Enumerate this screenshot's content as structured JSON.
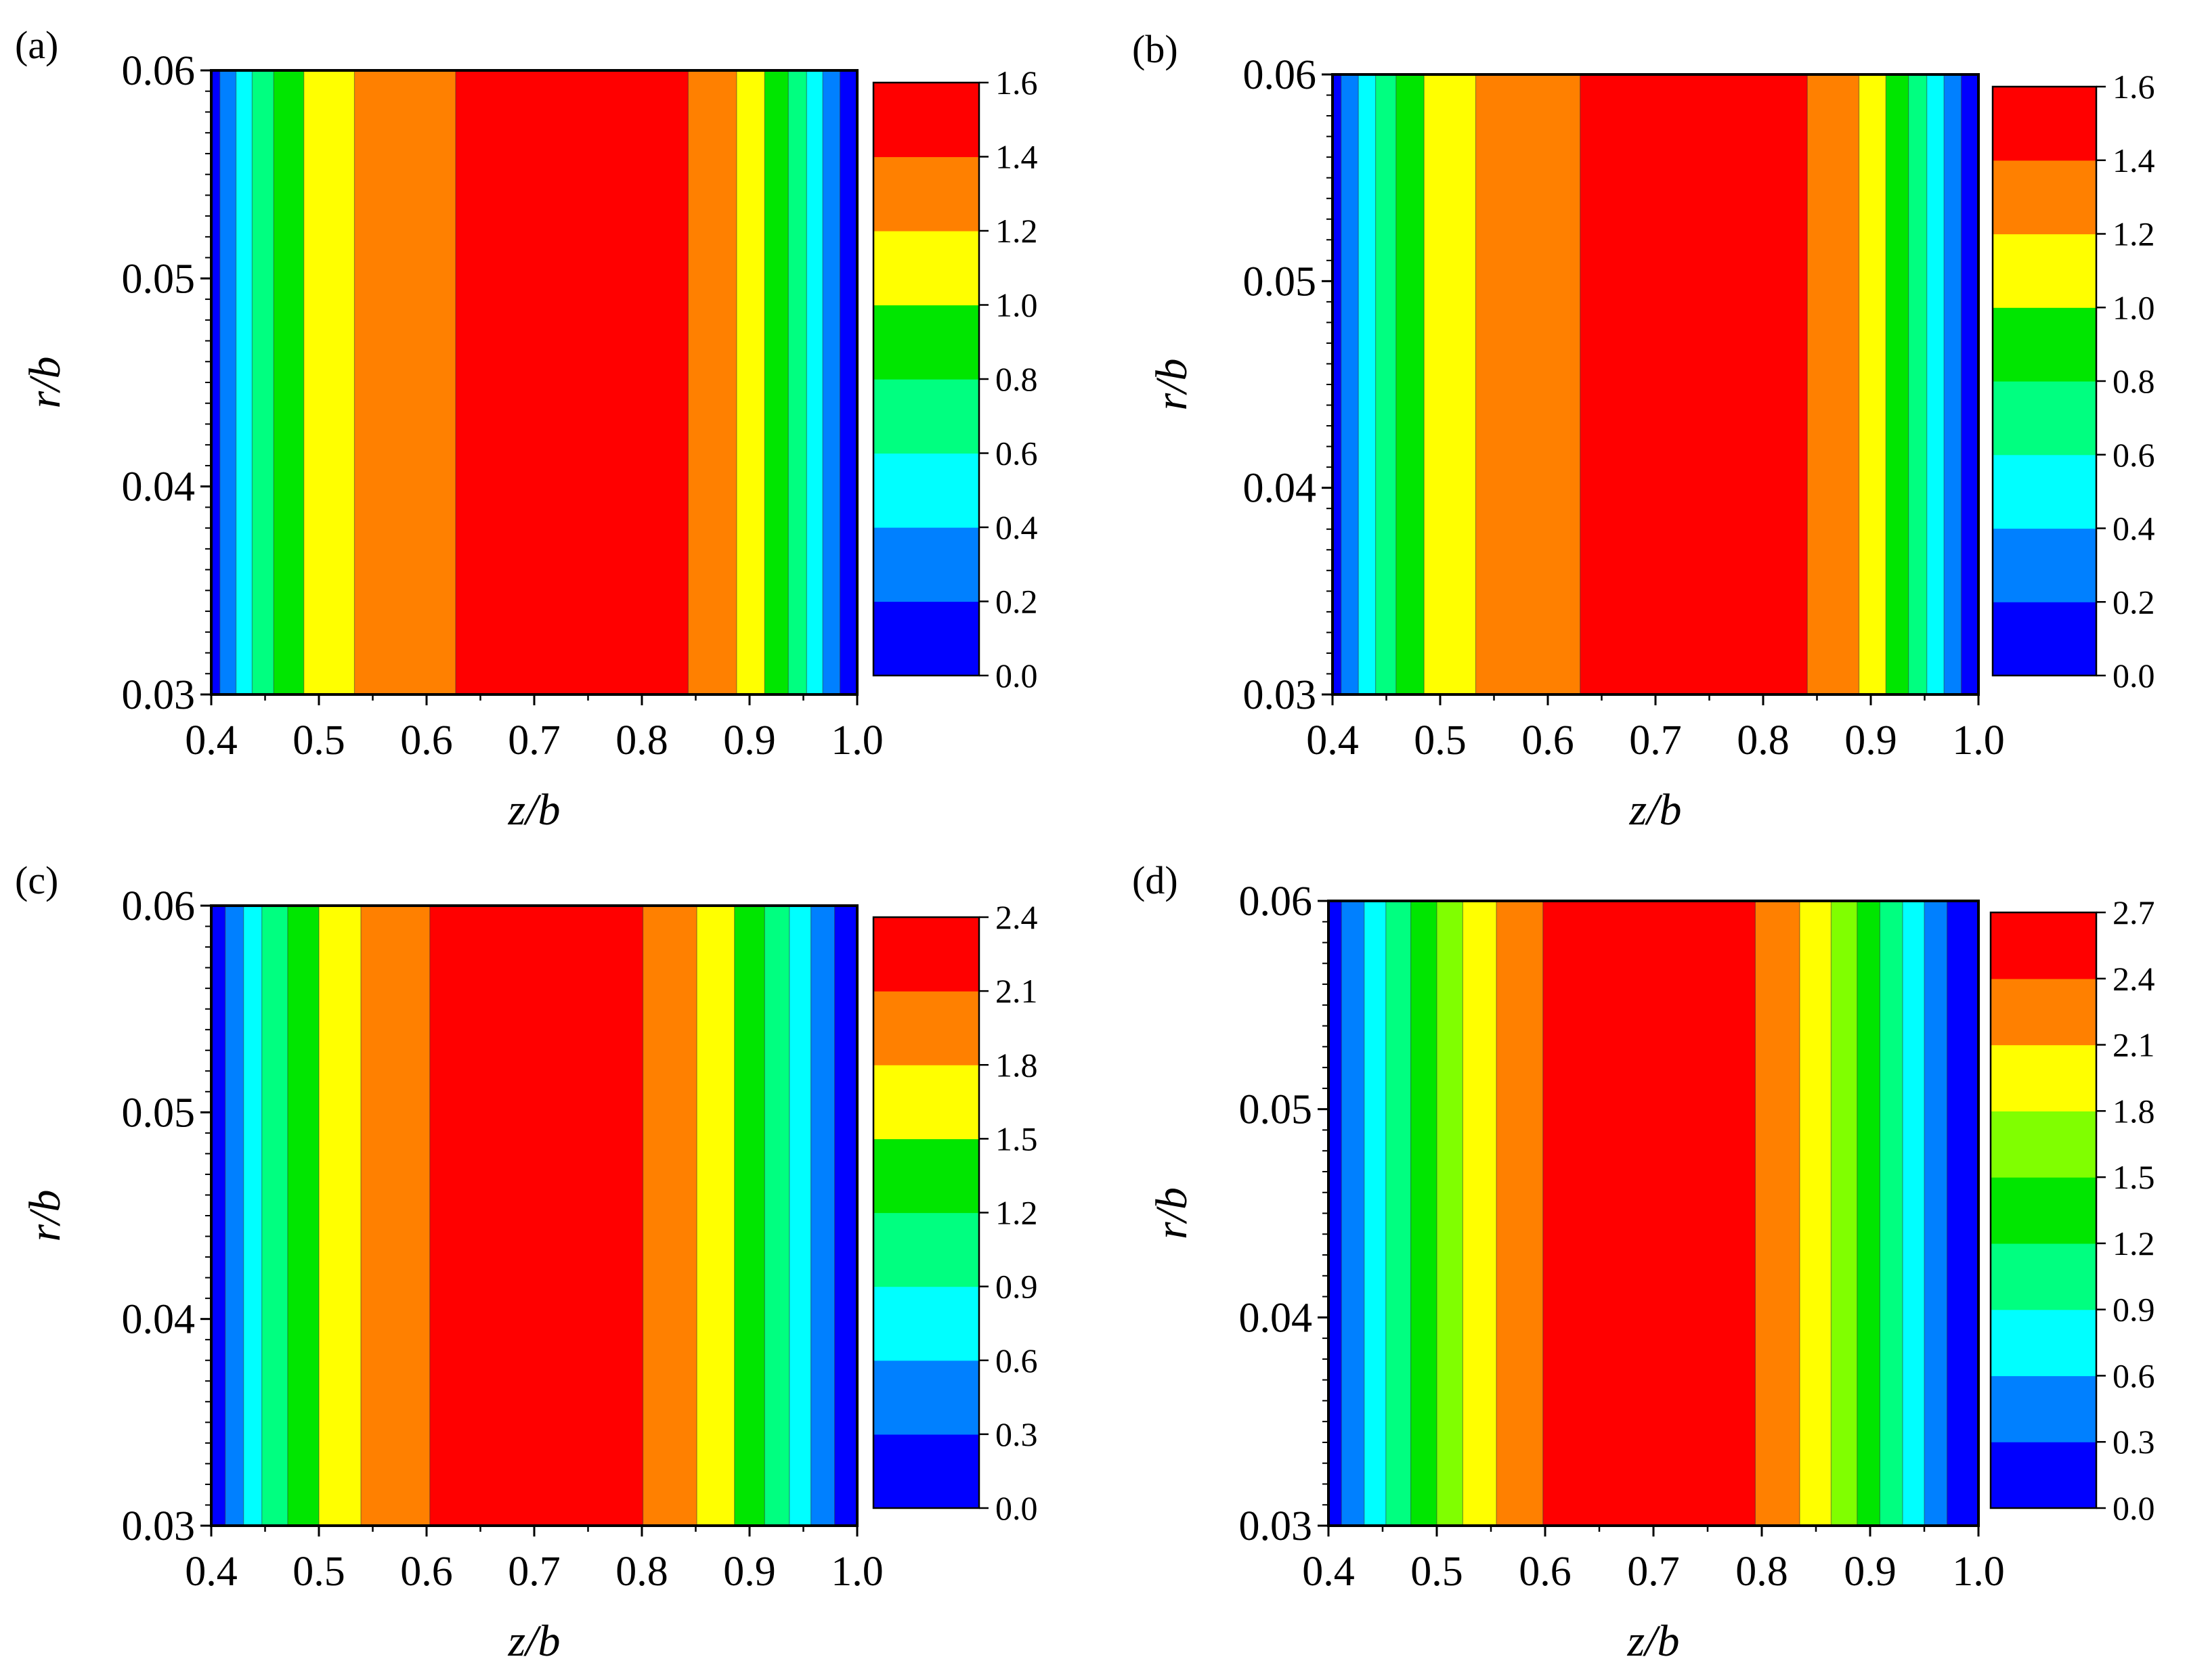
{
  "figure": {
    "description_layout": "2x2 grid of filled contour plots"
  },
  "chart_data": [
    {
      "type": "heatmap",
      "panel_label": "(a)",
      "xlabel": "z/b",
      "ylabel": "r/b",
      "xlim": [
        0.4,
        1.0
      ],
      "ylim": [
        0.03,
        0.06
      ],
      "xticks": [
        "0.4",
        "0.5",
        "0.6",
        "0.7",
        "0.8",
        "0.9",
        "1.0"
      ],
      "yticks": [
        "0.03",
        "0.04",
        "0.05",
        "0.06"
      ],
      "colorbar": {
        "levels": [
          "0.0",
          "0.2",
          "0.4",
          "0.6",
          "0.8",
          "1.0",
          "1.2",
          "1.4",
          "1.6"
        ],
        "colors": [
          "#0000ff",
          "#0080ff",
          "#00ffff",
          "#00ff80",
          "#00e600",
          "#ffff00",
          "#ff8000",
          "#ff0000"
        ]
      },
      "bands": [
        {
          "z_start": 0.4,
          "z_end": 0.408,
          "color": "#0000ff"
        },
        {
          "z_start": 0.408,
          "z_end": 0.423,
          "color": "#0080ff"
        },
        {
          "z_start": 0.423,
          "z_end": 0.438,
          "color": "#00ffff"
        },
        {
          "z_start": 0.438,
          "z_end": 0.458,
          "color": "#00ff80"
        },
        {
          "z_start": 0.458,
          "z_end": 0.486,
          "color": "#00e600"
        },
        {
          "z_start": 0.486,
          "z_end": 0.533,
          "color": "#ffff00"
        },
        {
          "z_start": 0.533,
          "z_end": 0.627,
          "color": "#ff8000"
        },
        {
          "z_start": 0.627,
          "z_end": 0.843,
          "color": "#ff0000"
        },
        {
          "z_start": 0.843,
          "z_end": 0.888,
          "color": "#ff8000"
        },
        {
          "z_start": 0.888,
          "z_end": 0.914,
          "color": "#ffff00"
        },
        {
          "z_start": 0.914,
          "z_end": 0.936,
          "color": "#00e600"
        },
        {
          "z_start": 0.936,
          "z_end": 0.953,
          "color": "#00ff80"
        },
        {
          "z_start": 0.953,
          "z_end": 0.968,
          "color": "#00ffff"
        },
        {
          "z_start": 0.968,
          "z_end": 0.984,
          "color": "#0080ff"
        },
        {
          "z_start": 0.984,
          "z_end": 1.0,
          "color": "#0000ff"
        }
      ]
    },
    {
      "type": "heatmap",
      "panel_label": "(b)",
      "xlabel": "z/b",
      "ylabel": "r/b",
      "xlim": [
        0.4,
        1.0
      ],
      "ylim": [
        0.03,
        0.06
      ],
      "xticks": [
        "0.4",
        "0.5",
        "0.6",
        "0.7",
        "0.8",
        "0.9",
        "1.0"
      ],
      "yticks": [
        "0.03",
        "0.04",
        "0.05",
        "0.06"
      ],
      "colorbar": {
        "levels": [
          "0.0",
          "0.2",
          "0.4",
          "0.6",
          "0.8",
          "1.0",
          "1.2",
          "1.4",
          "1.6"
        ],
        "colors": [
          "#0000ff",
          "#0080ff",
          "#00ffff",
          "#00ff80",
          "#00e600",
          "#ffff00",
          "#ff8000",
          "#ff0000"
        ]
      },
      "bands": [
        {
          "z_start": 0.4,
          "z_end": 0.408,
          "color": "#0000ff"
        },
        {
          "z_start": 0.408,
          "z_end": 0.424,
          "color": "#0080ff"
        },
        {
          "z_start": 0.424,
          "z_end": 0.44,
          "color": "#00ffff"
        },
        {
          "z_start": 0.44,
          "z_end": 0.459,
          "color": "#00ff80"
        },
        {
          "z_start": 0.459,
          "z_end": 0.485,
          "color": "#00e600"
        },
        {
          "z_start": 0.485,
          "z_end": 0.533,
          "color": "#ffff00"
        },
        {
          "z_start": 0.533,
          "z_end": 0.63,
          "color": "#ff8000"
        },
        {
          "z_start": 0.63,
          "z_end": 0.841,
          "color": "#ff0000"
        },
        {
          "z_start": 0.841,
          "z_end": 0.889,
          "color": "#ff8000"
        },
        {
          "z_start": 0.889,
          "z_end": 0.914,
          "color": "#ffff00"
        },
        {
          "z_start": 0.914,
          "z_end": 0.935,
          "color": "#00e600"
        },
        {
          "z_start": 0.935,
          "z_end": 0.952,
          "color": "#00ff80"
        },
        {
          "z_start": 0.952,
          "z_end": 0.968,
          "color": "#00ffff"
        },
        {
          "z_start": 0.968,
          "z_end": 0.984,
          "color": "#0080ff"
        },
        {
          "z_start": 0.984,
          "z_end": 1.0,
          "color": "#0000ff"
        }
      ]
    },
    {
      "type": "heatmap",
      "panel_label": "(c)",
      "xlabel": "z/b",
      "ylabel": "r/b",
      "xlim": [
        0.4,
        1.0
      ],
      "ylim": [
        0.03,
        0.06
      ],
      "xticks": [
        "0.4",
        "0.5",
        "0.6",
        "0.7",
        "0.8",
        "0.9",
        "1.0"
      ],
      "yticks": [
        "0.03",
        "0.04",
        "0.05",
        "0.06"
      ],
      "colorbar": {
        "levels": [
          "0.0",
          "0.3",
          "0.6",
          "0.9",
          "1.2",
          "1.5",
          "1.8",
          "2.1",
          "2.4"
        ],
        "colors": [
          "#0000ff",
          "#0080ff",
          "#00ffff",
          "#00ff80",
          "#00e600",
          "#ffff00",
          "#ff8000",
          "#ff0000"
        ]
      },
      "bands": [
        {
          "z_start": 0.4,
          "z_end": 0.413,
          "color": "#0000ff"
        },
        {
          "z_start": 0.413,
          "z_end": 0.43,
          "color": "#0080ff"
        },
        {
          "z_start": 0.43,
          "z_end": 0.447,
          "color": "#00ffff"
        },
        {
          "z_start": 0.447,
          "z_end": 0.471,
          "color": "#00ff80"
        },
        {
          "z_start": 0.471,
          "z_end": 0.5,
          "color": "#00e600"
        },
        {
          "z_start": 0.5,
          "z_end": 0.539,
          "color": "#ffff00"
        },
        {
          "z_start": 0.539,
          "z_end": 0.603,
          "color": "#ff8000"
        },
        {
          "z_start": 0.603,
          "z_end": 0.801,
          "color": "#ff0000"
        },
        {
          "z_start": 0.801,
          "z_end": 0.851,
          "color": "#ff8000"
        },
        {
          "z_start": 0.851,
          "z_end": 0.886,
          "color": "#ffff00"
        },
        {
          "z_start": 0.886,
          "z_end": 0.914,
          "color": "#00e600"
        },
        {
          "z_start": 0.914,
          "z_end": 0.937,
          "color": "#00ff80"
        },
        {
          "z_start": 0.937,
          "z_end": 0.957,
          "color": "#00ffff"
        },
        {
          "z_start": 0.957,
          "z_end": 0.979,
          "color": "#0080ff"
        },
        {
          "z_start": 0.979,
          "z_end": 1.0,
          "color": "#0000ff"
        }
      ]
    },
    {
      "type": "heatmap",
      "panel_label": "(d)",
      "xlabel": "z/b",
      "ylabel": "r/b",
      "xlim": [
        0.4,
        1.0
      ],
      "ylim": [
        0.03,
        0.06
      ],
      "xticks": [
        "0.4",
        "0.5",
        "0.6",
        "0.7",
        "0.8",
        "0.9",
        "1.0"
      ],
      "yticks": [
        "0.03",
        "0.04",
        "0.05",
        "0.06"
      ],
      "colorbar": {
        "levels": [
          "0.0",
          "0.3",
          "0.6",
          "0.9",
          "1.2",
          "1.5",
          "1.8",
          "2.1",
          "2.4",
          "2.7"
        ],
        "colors": [
          "#0000ff",
          "#0080ff",
          "#00ffff",
          "#00ff80",
          "#00e600",
          "#80ff00",
          "#ffff00",
          "#ff8000",
          "#ff0000"
        ]
      },
      "bands": [
        {
          "z_start": 0.4,
          "z_end": 0.412,
          "color": "#0000ff"
        },
        {
          "z_start": 0.412,
          "z_end": 0.433,
          "color": "#0080ff"
        },
        {
          "z_start": 0.433,
          "z_end": 0.453,
          "color": "#00ffff"
        },
        {
          "z_start": 0.453,
          "z_end": 0.476,
          "color": "#00ff80"
        },
        {
          "z_start": 0.476,
          "z_end": 0.5,
          "color": "#00e600"
        },
        {
          "z_start": 0.5,
          "z_end": 0.524,
          "color": "#80ff00"
        },
        {
          "z_start": 0.524,
          "z_end": 0.555,
          "color": "#ffff00"
        },
        {
          "z_start": 0.555,
          "z_end": 0.598,
          "color": "#ff8000"
        },
        {
          "z_start": 0.598,
          "z_end": 0.794,
          "color": "#ff0000"
        },
        {
          "z_start": 0.794,
          "z_end": 0.835,
          "color": "#ff8000"
        },
        {
          "z_start": 0.835,
          "z_end": 0.864,
          "color": "#ffff00"
        },
        {
          "z_start": 0.864,
          "z_end": 0.888,
          "color": "#80ff00"
        },
        {
          "z_start": 0.888,
          "z_end": 0.909,
          "color": "#00e600"
        },
        {
          "z_start": 0.909,
          "z_end": 0.93,
          "color": "#00ff80"
        },
        {
          "z_start": 0.93,
          "z_end": 0.95,
          "color": "#00ffff"
        },
        {
          "z_start": 0.95,
          "z_end": 0.971,
          "color": "#0080ff"
        },
        {
          "z_start": 0.971,
          "z_end": 1.0,
          "color": "#0000ff"
        }
      ]
    }
  ]
}
